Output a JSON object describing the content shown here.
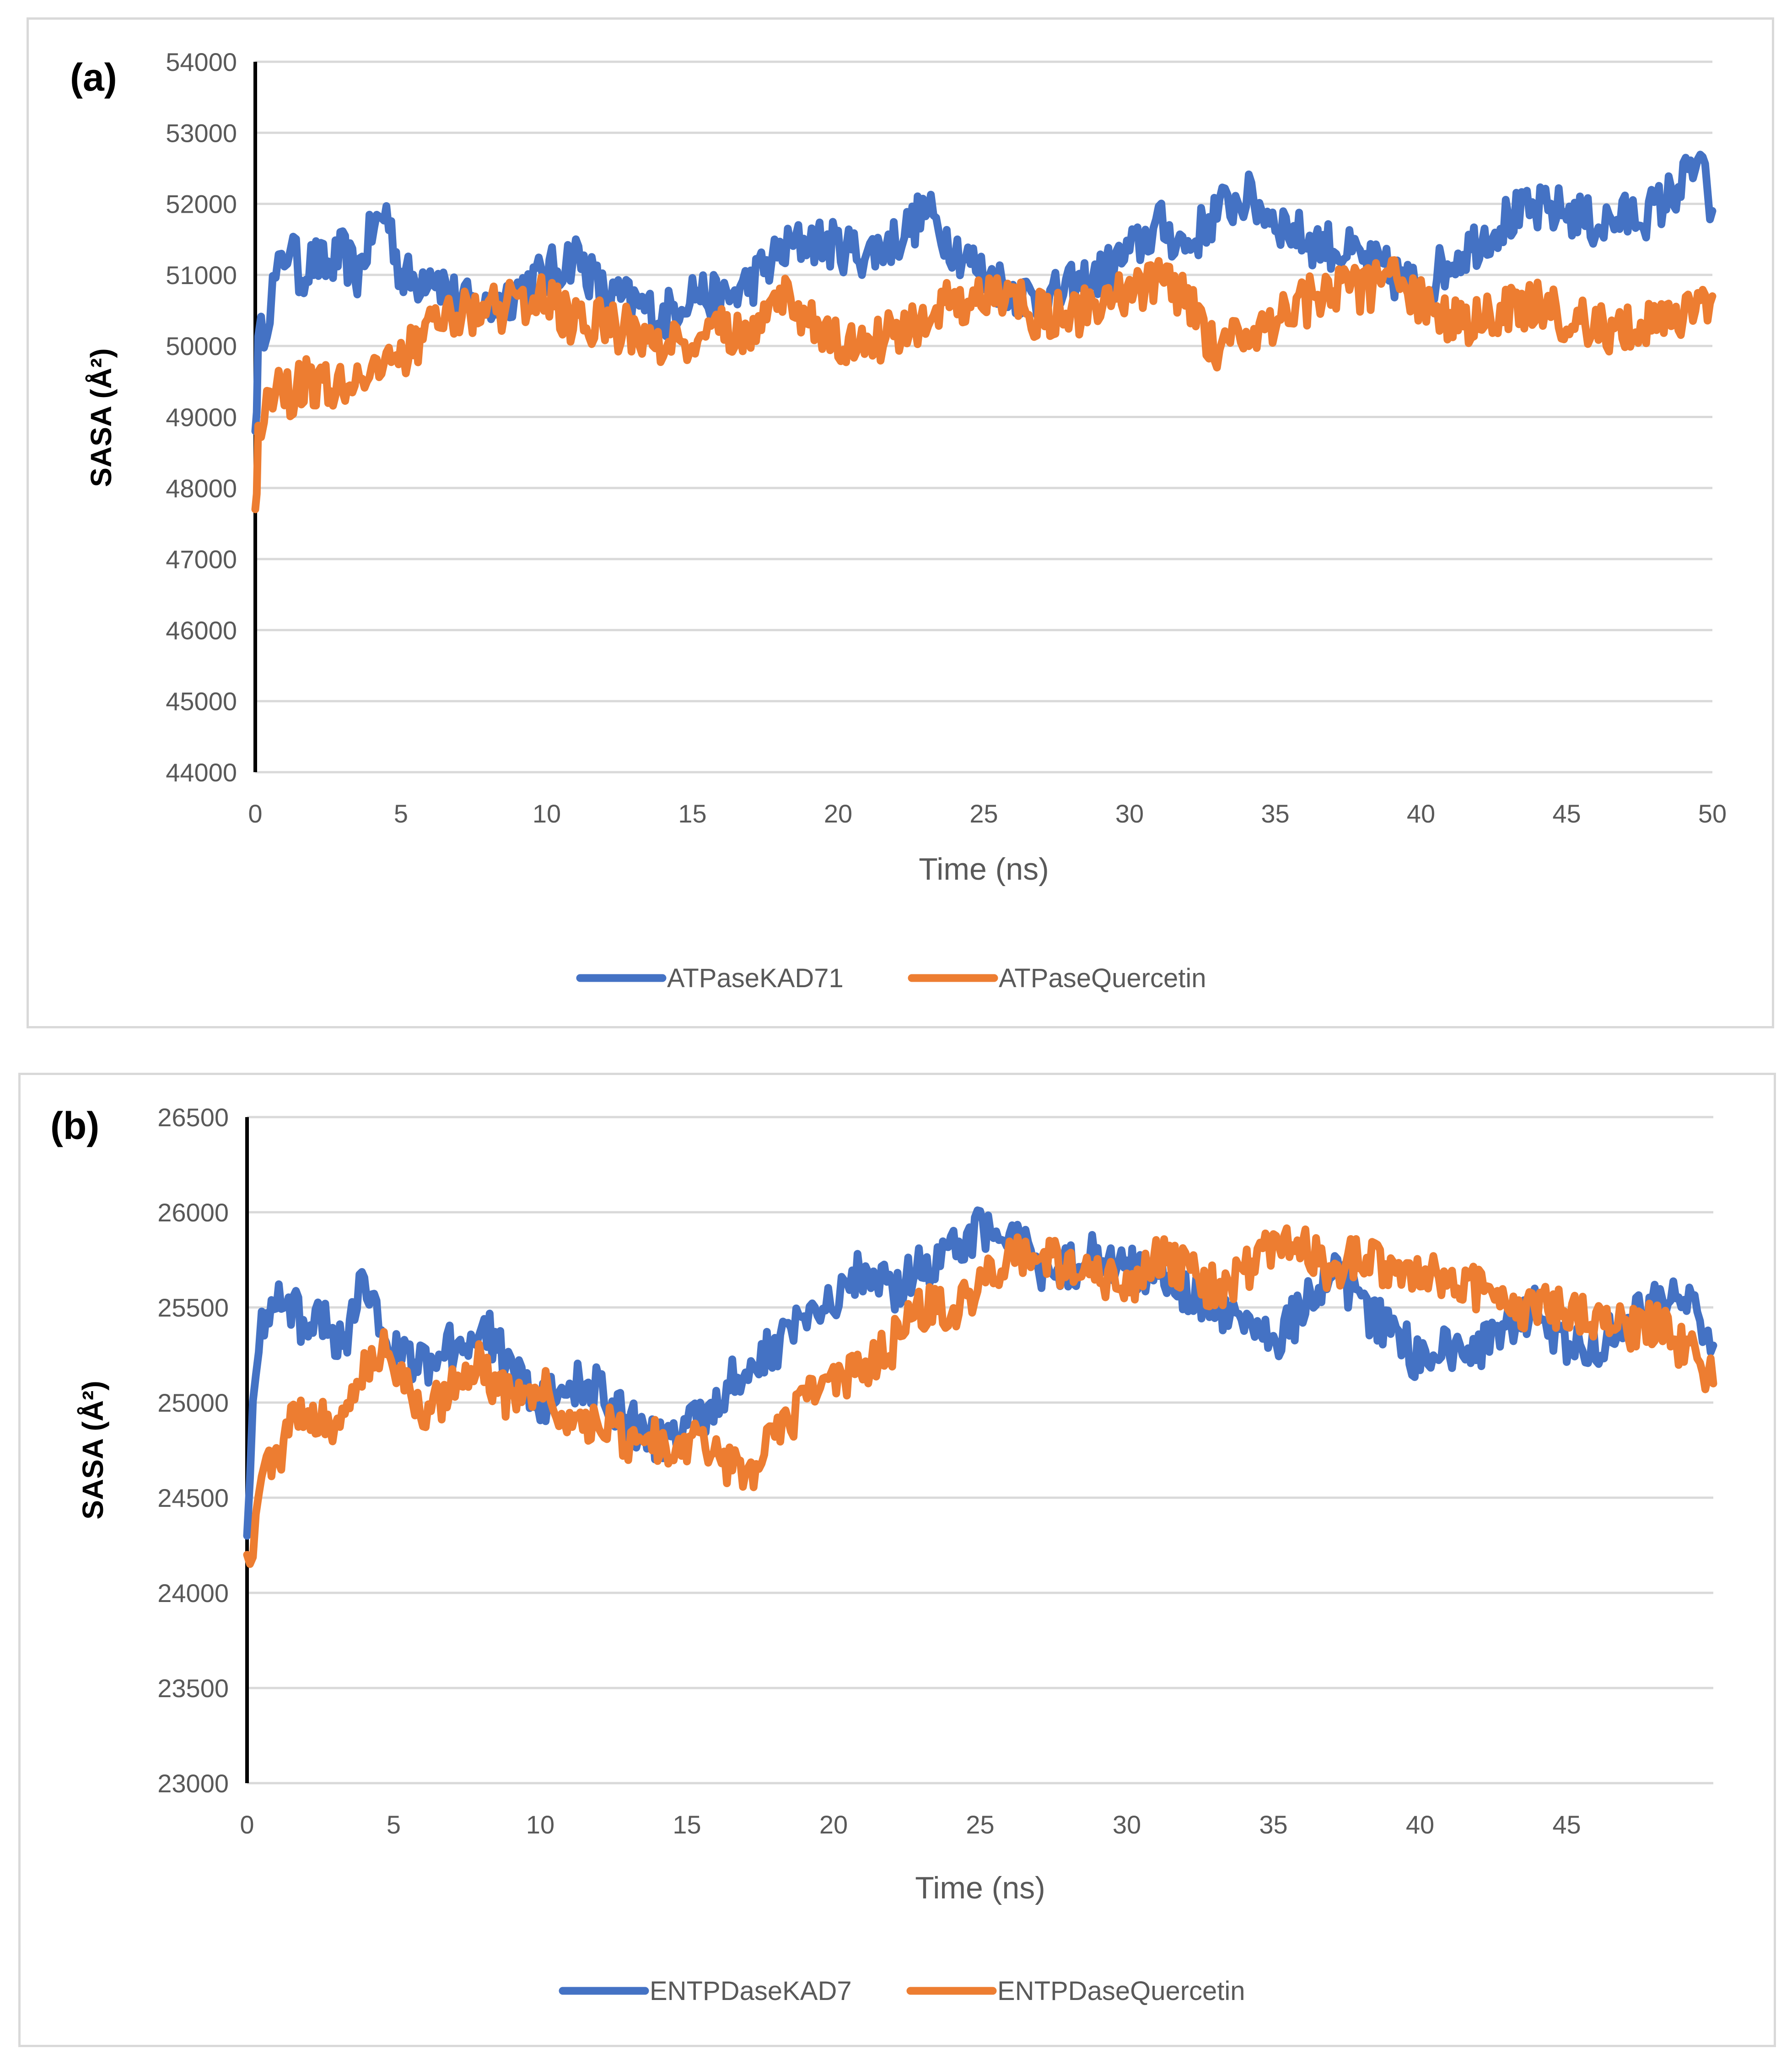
{
  "colors": {
    "series1": "#4472c4",
    "series2": "#ed7d31"
  },
  "chart_data": [
    {
      "type": "line",
      "panel_label": "(a)",
      "title": "",
      "xlabel": "Time (ns)",
      "ylabel": "SASA (Å²)",
      "xlim": [
        0,
        50
      ],
      "ylim": [
        44000,
        54000
      ],
      "x_ticks": [
        "0",
        "5",
        "10",
        "15",
        "20",
        "25",
        "30",
        "35",
        "40",
        "45",
        "50"
      ],
      "y_ticks": [
        "44000",
        "45000",
        "46000",
        "47000",
        "48000",
        "49000",
        "50000",
        "51000",
        "52000",
        "53000",
        "54000"
      ],
      "grid": true,
      "legend_position": "bottom",
      "series": [
        {
          "name": "ATPaseKAD71",
          "color": "#4472c4",
          "x": [
            0,
            0.1,
            0.3,
            0.6,
            0.9,
            1.2,
            1.5,
            2,
            2.5,
            3,
            3.5,
            4,
            4.5,
            5,
            5.5,
            6,
            7,
            8,
            9,
            10,
            11,
            12,
            13,
            14,
            15,
            16,
            17,
            18,
            19,
            20,
            21,
            22,
            23,
            24,
            25,
            26,
            27,
            28,
            29,
            30,
            31,
            32,
            33,
            34,
            35,
            36,
            37,
            38,
            39,
            40,
            41,
            42,
            43,
            44,
            45,
            46,
            47,
            48,
            48.5,
            49,
            49.5,
            50
          ],
          "values": [
            48800,
            49900,
            50300,
            50800,
            51100,
            51500,
            51000,
            51200,
            51100,
            51300,
            51000,
            51600,
            51900,
            51000,
            50900,
            51100,
            50600,
            50500,
            50800,
            51000,
            51300,
            50700,
            50600,
            50400,
            50800,
            50600,
            50900,
            51300,
            51500,
            51400,
            51300,
            51500,
            51900,
            51400,
            51000,
            50800,
            50600,
            50800,
            51000,
            51300,
            51700,
            51400,
            51900,
            52100,
            51800,
            51500,
            51400,
            51200,
            51000,
            50800,
            51200,
            51500,
            51800,
            51900,
            51900,
            51700,
            51800,
            51900,
            52100,
            52300,
            52600,
            51900
          ]
        },
        {
          "name": "ATPaseQuercetin",
          "color": "#ed7d31",
          "x": [
            0,
            0.1,
            0.3,
            0.6,
            0.9,
            1.2,
            1.5,
            2,
            2.5,
            3,
            3.5,
            4,
            4.5,
            5,
            5.5,
            6,
            7,
            8,
            9,
            10,
            11,
            12,
            13,
            14,
            15,
            16,
            17,
            18,
            19,
            20,
            21,
            22,
            23,
            24,
            25,
            26,
            27,
            28,
            29,
            30,
            31,
            32,
            33,
            34,
            35,
            36,
            37,
            38,
            39,
            40,
            41,
            42,
            43,
            44,
            45,
            46,
            47,
            48,
            48.5,
            49,
            49.5,
            50
          ],
          "values": [
            47700,
            48700,
            49100,
            49400,
            49600,
            49300,
            49500,
            49500,
            49400,
            49500,
            49600,
            49500,
            49600,
            49800,
            50100,
            50200,
            50400,
            50500,
            50600,
            50700,
            50300,
            50300,
            50200,
            50000,
            50100,
            50200,
            50300,
            50700,
            50400,
            50000,
            50000,
            50200,
            50400,
            50600,
            50700,
            50600,
            50400,
            50400,
            50700,
            50800,
            50900,
            50700,
            49900,
            50300,
            50300,
            50600,
            50800,
            50800,
            50900,
            50600,
            50300,
            50400,
            50500,
            50600,
            50400,
            50200,
            50300,
            50300,
            50400,
            50400,
            50500,
            50700
          ]
        }
      ]
    },
    {
      "type": "line",
      "panel_label": "(b)",
      "title": "",
      "xlabel": "Time (ns)",
      "ylabel": "SASA (Å²)",
      "xlim": [
        0,
        50
      ],
      "ylim": [
        23000,
        26500
      ],
      "x_ticks": [
        "0",
        "5",
        "10",
        "15",
        "20",
        "25",
        "30",
        "35",
        "40",
        "45"
      ],
      "y_ticks": [
        "23000",
        "23500",
        "24000",
        "24500",
        "25000",
        "25500",
        "26000",
        "26500"
      ],
      "grid": true,
      "legend_position": "bottom",
      "series": [
        {
          "name": "ENTPDaseKAD7",
          "color": "#4472c4",
          "x": [
            0,
            0.2,
            0.5,
            1,
            1.5,
            2,
            2.5,
            3,
            3.5,
            4,
            4.5,
            5,
            6,
            7,
            8,
            9,
            10,
            11,
            12,
            13,
            14,
            15,
            16,
            17,
            18,
            19,
            20,
            21,
            22,
            23,
            24,
            25,
            26,
            27,
            28,
            29,
            30,
            31,
            32,
            33,
            34,
            35,
            36,
            37,
            38,
            39,
            40,
            41,
            42,
            43,
            44,
            45,
            46,
            47,
            48,
            49,
            50
          ],
          "values": [
            24300,
            25100,
            25400,
            25600,
            25500,
            25400,
            25500,
            25300,
            25400,
            25700,
            25400,
            25300,
            25200,
            25300,
            25400,
            25200,
            25000,
            25100,
            25100,
            24900,
            24800,
            24900,
            25000,
            25200,
            25300,
            25400,
            25500,
            25700,
            25600,
            25700,
            25800,
            25900,
            25900,
            25700,
            25700,
            25800,
            25700,
            25700,
            25600,
            25500,
            25400,
            25300,
            25500,
            25700,
            25500,
            25400,
            25200,
            25300,
            25300,
            25400,
            25500,
            25300,
            25300,
            25400,
            25500,
            25600,
            25300
          ]
        },
        {
          "name": "ENTPDaseQuercetin",
          "color": "#ed7d31",
          "x": [
            0,
            0.2,
            0.5,
            1,
            1.5,
            2,
            2.5,
            3,
            3.5,
            4,
            4.5,
            5,
            6,
            7,
            8,
            9,
            10,
            11,
            12,
            13,
            14,
            15,
            16,
            17,
            18,
            19,
            20,
            21,
            22,
            23,
            24,
            25,
            26,
            27,
            28,
            29,
            30,
            31,
            32,
            33,
            34,
            35,
            36,
            37,
            38,
            39,
            40,
            41,
            42,
            43,
            44,
            45,
            46,
            47,
            48,
            49,
            50
          ],
          "values": [
            24200,
            24300,
            24600,
            24700,
            24900,
            24900,
            24900,
            24900,
            25000,
            25200,
            25300,
            25200,
            24900,
            25100,
            25200,
            25000,
            25100,
            24900,
            24900,
            24800,
            24800,
            24800,
            24700,
            24600,
            24800,
            25000,
            25100,
            25200,
            25300,
            25500,
            25500,
            25600,
            25800,
            25800,
            25700,
            25700,
            25600,
            25800,
            25700,
            25600,
            25700,
            25800,
            25800,
            25700,
            25800,
            25700,
            25700,
            25600,
            25600,
            25500,
            25500,
            25500,
            25400,
            25400,
            25400,
            25300,
            25100
          ]
        }
      ]
    }
  ]
}
